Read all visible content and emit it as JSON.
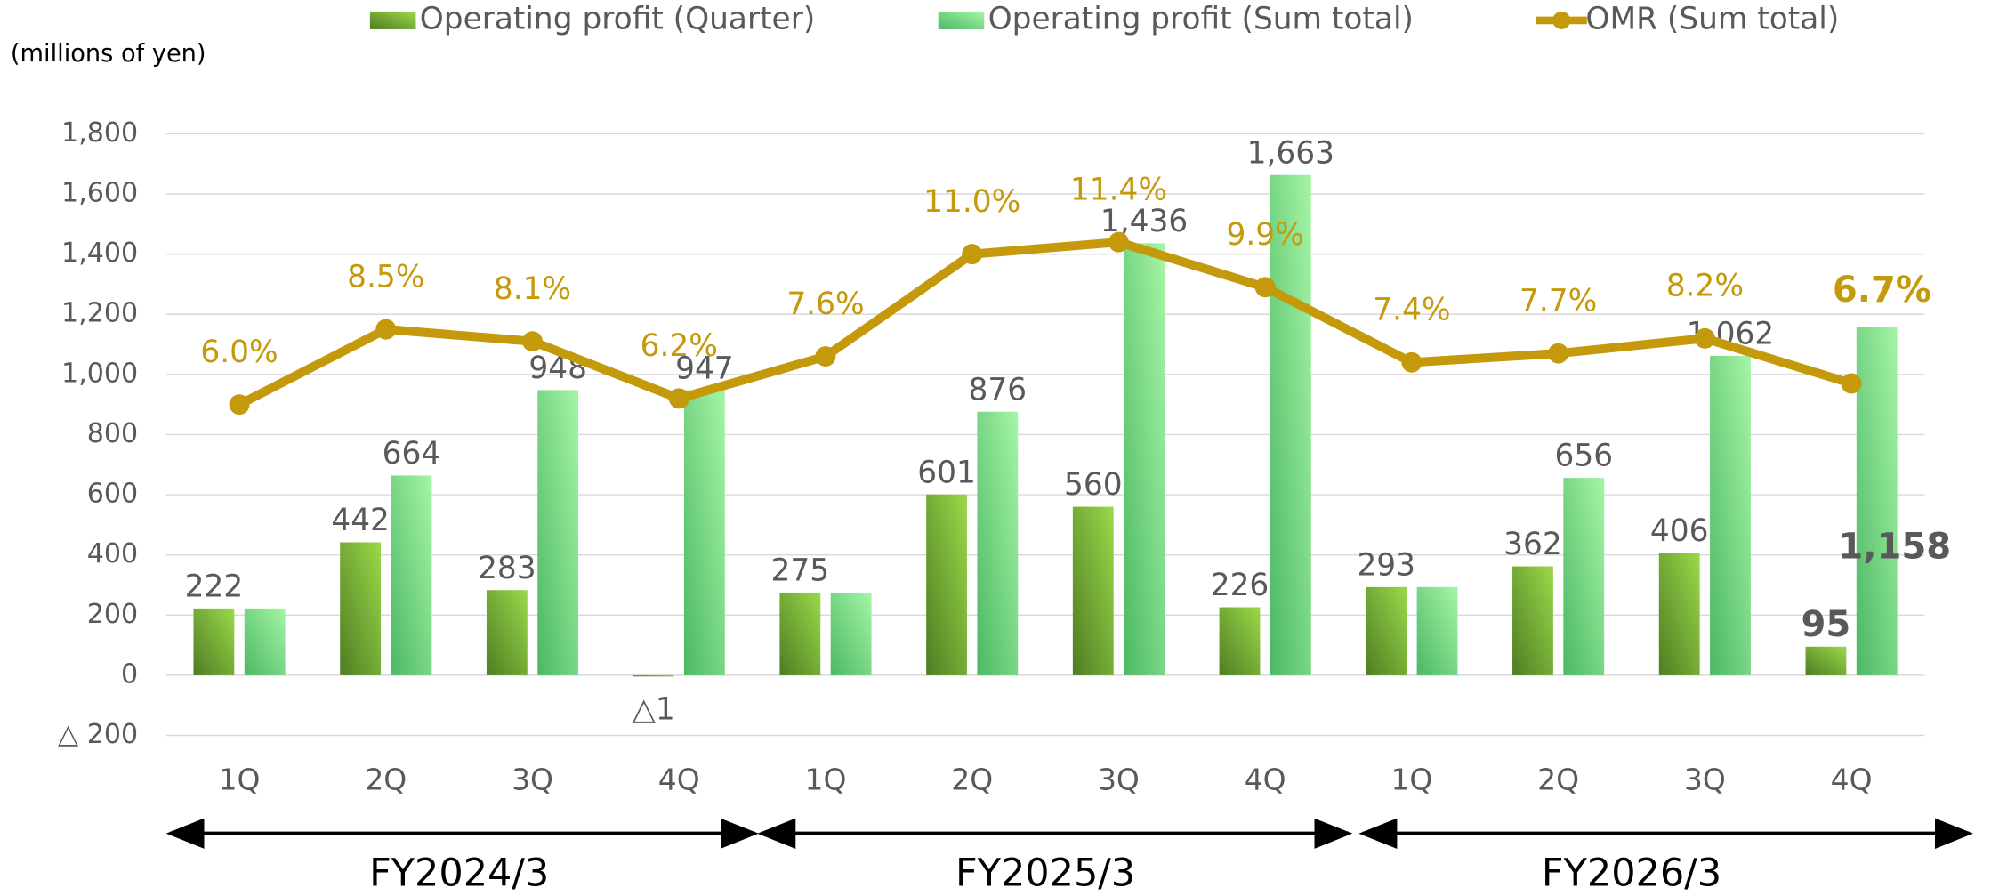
{
  "chart_data": {
    "type": "bar",
    "axis_label": "(millions of yen)",
    "categories": [
      "1Q",
      "2Q",
      "3Q",
      "4Q",
      "1Q",
      "2Q",
      "3Q",
      "4Q",
      "1Q",
      "2Q",
      "3Q",
      "4Q"
    ],
    "groups": [
      "FY2024/3",
      "FY2025/3",
      "FY2026/3"
    ],
    "series": [
      {
        "name": "Operating profit (Quarter)",
        "color": "#7cb83a",
        "values": [
          222,
          442,
          283,
          -1,
          275,
          601,
          560,
          226,
          293,
          362,
          406,
          95
        ],
        "value_labels": [
          "222",
          "442",
          "283",
          "△1",
          "275",
          "601",
          "560",
          "226",
          "293",
          "362",
          "406",
          "95"
        ]
      },
      {
        "name": "Operating profit (Sum total)",
        "color": "#7ee88a",
        "values": [
          222,
          664,
          948,
          947,
          275,
          876,
          1436,
          1663,
          293,
          656,
          1062,
          1158
        ],
        "value_labels": [
          "222",
          "664",
          "948",
          "947",
          "275",
          "876",
          "1,436",
          "1,663",
          "293",
          "656",
          "1,062",
          "1,158"
        ]
      },
      {
        "name": "OMR (Sum total)",
        "color": "#c49a0c",
        "type": "line",
        "axis": "y2",
        "values": [
          6.0,
          8.5,
          8.1,
          6.2,
          7.6,
          11.0,
          11.4,
          9.9,
          7.4,
          7.7,
          8.2,
          6.7
        ],
        "value_labels": [
          "6.0%",
          "8.5%",
          "8.1%",
          "6.2%",
          "7.6%",
          "11.0%",
          "11.4%",
          "9.9%",
          "7.4%",
          "7.7%",
          "8.2%",
          "6.7%"
        ]
      }
    ],
    "ylim": [
      -200,
      1800
    ],
    "yticks": [
      {
        "value": -200,
        "label": "△ 200"
      },
      0,
      200,
      400,
      600,
      800,
      {
        "value": 1000,
        "label": "1,000"
      },
      {
        "value": 1200,
        "label": "1,200"
      },
      {
        "value": 1400,
        "label": "1,400"
      },
      {
        "value": 1600,
        "label": "1,600"
      },
      {
        "value": 1800,
        "label": "1,800"
      }
    ],
    "y2lim": [
      -5,
      15
    ],
    "grid": true
  }
}
